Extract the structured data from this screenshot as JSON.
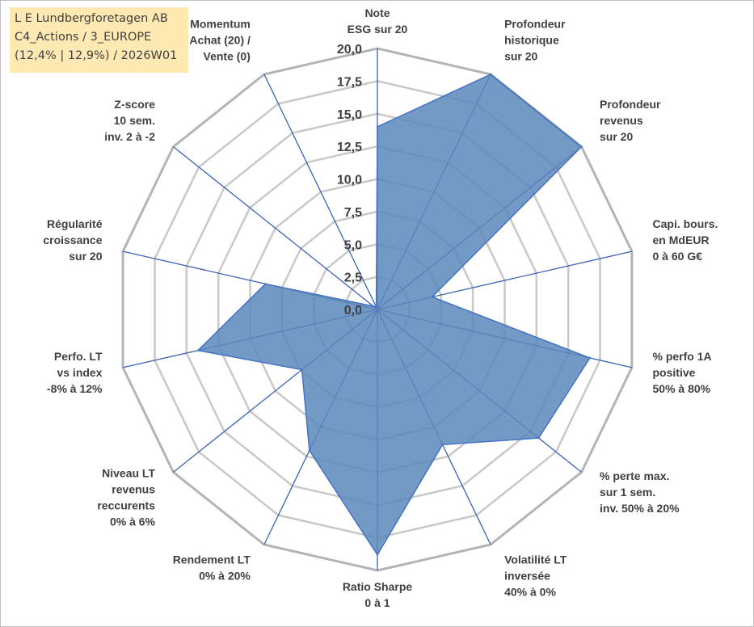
{
  "title_box": {
    "line1": "L E Lundbergforetagen AB",
    "line2": "C4_Actions / 3_EUROPE",
    "line3": "(12,4% | 12,9%) / 2026W01"
  },
  "colors": {
    "fill": "#5b87bb",
    "stroke": "#4472c4",
    "spoke": "#3a63b5",
    "grid": "#c8c8c8",
    "outer_grid": "#b4b4b4",
    "title_bg": "#ffe9b3"
  },
  "chart_data": {
    "type": "radar",
    "rmin": 0,
    "rmax": 20,
    "ticks": [
      {
        "value": 0,
        "label": "0,0"
      },
      {
        "value": 2.5,
        "label": "2,5"
      },
      {
        "value": 5,
        "label": "5,0"
      },
      {
        "value": 7.5,
        "label": "7,5"
      },
      {
        "value": 10,
        "label": "10,0"
      },
      {
        "value": 12.5,
        "label": "12,5"
      },
      {
        "value": 15,
        "label": "15,0"
      },
      {
        "value": 17.5,
        "label": "17,5"
      },
      {
        "value": 20,
        "label": "20,0"
      }
    ],
    "categories": [
      {
        "lines": [
          "Note",
          "ESG sur 20"
        ]
      },
      {
        "lines": [
          "Profondeur",
          "historique",
          "sur 20"
        ]
      },
      {
        "lines": [
          "Profondeur",
          "revenus",
          "sur 20"
        ]
      },
      {
        "lines": [
          "Capi. bours.",
          "en MdEUR",
          "0 à 60 G€"
        ]
      },
      {
        "lines": [
          "% perfo 1A",
          "positive",
          "50% à 80%"
        ]
      },
      {
        "lines": [
          "% perte max.",
          "sur 1 sem.",
          "inv. 50% à 20%"
        ]
      },
      {
        "lines": [
          "Volatilité LT",
          "inversée",
          "40% à 0%"
        ]
      },
      {
        "lines": [
          "Ratio Sharpe",
          "0 à 1"
        ]
      },
      {
        "lines": [
          "Rendement LT",
          "0% à 20%"
        ]
      },
      {
        "lines": [
          "Niveau LT",
          "revenus",
          "reccurents",
          "0% à 6%"
        ]
      },
      {
        "lines": [
          "Perfo. LT",
          "vs index",
          "-8% à 12%"
        ]
      },
      {
        "lines": [
          "Régularité",
          "croissance",
          "sur 20"
        ]
      },
      {
        "lines": [
          "Z-score",
          "10 sem.",
          "inv. 2 à -2"
        ]
      },
      {
        "lines": [
          "Momentum",
          "Achat (20) /",
          "Vente (0)"
        ]
      }
    ],
    "series": [
      {
        "name": "L E Lundbergforetagen AB",
        "values": [
          14.0,
          20.0,
          20.0,
          4.3,
          16.7,
          15.8,
          11.5,
          18.8,
          12.0,
          7.4,
          14.1,
          8.8,
          0.4,
          0.2
        ]
      }
    ]
  }
}
